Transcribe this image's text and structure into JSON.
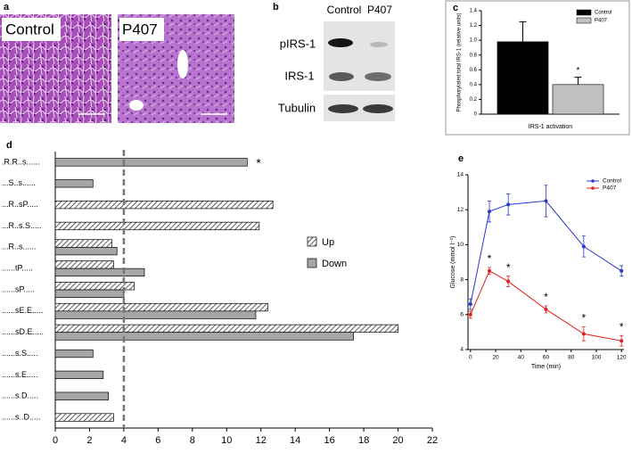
{
  "panel_labels": [
    "a",
    "b",
    "c",
    "d",
    "e"
  ],
  "micrographs": [
    "Control",
    "P407"
  ],
  "blot": {
    "columns": [
      "Control",
      "P407"
    ],
    "rows": [
      "pIRS-1",
      "IRS-1",
      "Tubulin"
    ]
  },
  "chart_data": [
    {
      "type": "bar",
      "ylabel": "Phosphorylated:total IRS-1 (relative units)",
      "categories": [
        "IRS-1 activation"
      ],
      "series": [
        {
          "name": "Control",
          "color": "#000000",
          "values": [
            0.98
          ],
          "errors": [
            0.27
          ]
        },
        {
          "name": "P407",
          "color": "#c0c0c0",
          "values": [
            0.4
          ],
          "errors": [
            0.1
          ]
        }
      ],
      "ylim": [
        0,
        1.4
      ],
      "yticks": [
        0,
        0.2,
        0.4,
        0.6,
        0.8,
        {
          "value": 1,
          "label": "1.0"
        },
        1.2,
        1.4
      ],
      "annotations": [
        {
          "text": "*",
          "series": 1
        }
      ],
      "legend": "upper right"
    },
    {
      "type": "barh",
      "categories": [
        ".R.R..s......",
        "...S..s......",
        "...R..sP.....",
        "...R..s.S.....",
        "...R..s......",
        "......tP.....",
        "......sP.....",
        "......sE.E.....",
        "......sD.E.....",
        "......s.S.....",
        "......s.E.....",
        "......s.D.....",
        "......s..D....."
      ],
      "series": [
        {
          "name": "Up",
          "color": "#8c8c8c",
          "hatch": true,
          "values": [
            null,
            null,
            12.7,
            11.9,
            3.3,
            3.4,
            4.6,
            12.4,
            20.0,
            null,
            null,
            null,
            3.4
          ]
        },
        {
          "name": "Down",
          "color": "#a6a6a6",
          "values": [
            11.2,
            2.2,
            null,
            null,
            3.6,
            5.2,
            4.0,
            11.7,
            17.4,
            2.2,
            2.8,
            3.1,
            null
          ]
        }
      ],
      "xlim": [
        0,
        22
      ],
      "xticks": [
        0,
        2,
        4,
        6,
        8,
        10,
        12,
        14,
        16,
        18,
        20,
        22
      ],
      "reference_line": 4,
      "annotations": [
        {
          "text": "*",
          "category": 0
        }
      ],
      "legend": "right"
    },
    {
      "type": "line",
      "xlabel": "Time (min)",
      "ylabel": "Glucose (mmol l⁻¹)",
      "x": [
        0,
        15,
        30,
        60,
        90,
        120
      ],
      "series": [
        {
          "name": "Control",
          "color": "#2838c8",
          "values": [
            6.6,
            11.9,
            12.3,
            12.5,
            9.9,
            8.5
          ],
          "errors": [
            0.3,
            0.6,
            0.6,
            0.9,
            0.6,
            0.3
          ]
        },
        {
          "name": "P407",
          "color": "#e02020",
          "values": [
            6.0,
            8.5,
            7.9,
            6.3,
            4.9,
            4.5
          ],
          "errors": [
            0.2,
            0.2,
            0.3,
            0.2,
            0.4,
            0.3
          ]
        }
      ],
      "xlim": [
        -2,
        122
      ],
      "xticks": [
        0,
        20,
        40,
        60,
        80,
        100,
        120
      ],
      "ylim": [
        4,
        14
      ],
      "yticks": [
        4,
        6,
        8,
        10,
        12,
        14
      ],
      "annotations": [
        {
          "text": "*",
          "series": 1,
          "index": 1
        },
        {
          "text": "*",
          "series": 1,
          "index": 2
        },
        {
          "text": "*",
          "series": 1,
          "index": 3
        },
        {
          "text": "*",
          "series": 1,
          "index": 4
        },
        {
          "text": "*",
          "series": 1,
          "index": 5
        }
      ],
      "legend": "upper right"
    }
  ]
}
